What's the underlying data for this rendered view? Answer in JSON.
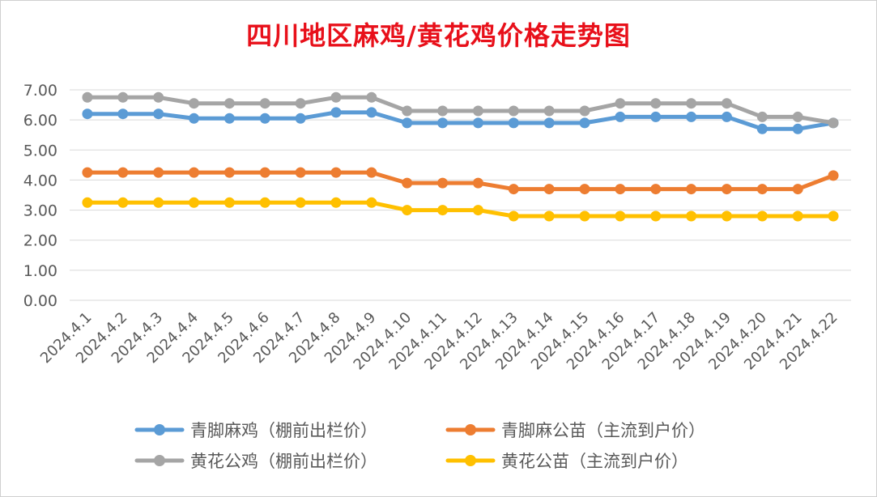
{
  "chart_data": {
    "type": "line",
    "title": "四川地区麻鸡/黄花鸡价格走势图",
    "xlabel": "",
    "ylabel": "",
    "ylim": [
      0,
      7
    ],
    "y_ticks": [
      "0.00",
      "1.00",
      "2.00",
      "3.00",
      "4.00",
      "5.00",
      "6.00",
      "7.00"
    ],
    "grid": true,
    "legend_position": "bottom",
    "categories": [
      "2024.4.1",
      "2024.4.2",
      "2024.4.3",
      "2024.4.4",
      "2024.4.5",
      "2024.4.6",
      "2024.4.7",
      "2024.4.8",
      "2024.4.9",
      "2024.4.10",
      "2024.4.11",
      "2024.4.12",
      "2024.4.13",
      "2024.4.14",
      "2024.4.15",
      "2024.4.16",
      "2024.4.17",
      "2024.4.18",
      "2024.4.19",
      "2024.4.20",
      "2024.4.21",
      "2024.4.22"
    ],
    "series": [
      {
        "name": "青脚麻鸡（棚前出栏价）",
        "color": "#5b9bd5",
        "values": [
          6.2,
          6.2,
          6.2,
          6.05,
          6.05,
          6.05,
          6.05,
          6.25,
          6.25,
          5.9,
          5.9,
          5.9,
          5.9,
          5.9,
          5.9,
          6.1,
          6.1,
          6.1,
          6.1,
          5.7,
          5.7,
          5.9
        ]
      },
      {
        "name": "青脚麻公苗（主流到户价）",
        "color": "#ed7d31",
        "values": [
          4.25,
          4.25,
          4.25,
          4.25,
          4.25,
          4.25,
          4.25,
          4.25,
          4.25,
          3.9,
          3.9,
          3.9,
          3.7,
          3.7,
          3.7,
          3.7,
          3.7,
          3.7,
          3.7,
          3.7,
          3.7,
          4.15
        ]
      },
      {
        "name": "黄花公鸡（棚前出栏价）",
        "color": "#a5a5a5",
        "values": [
          6.75,
          6.75,
          6.75,
          6.55,
          6.55,
          6.55,
          6.55,
          6.75,
          6.75,
          6.3,
          6.3,
          6.3,
          6.3,
          6.3,
          6.3,
          6.55,
          6.55,
          6.55,
          6.55,
          6.1,
          6.1,
          5.9
        ]
      },
      {
        "name": "黄花公苗（主流到户价）",
        "color": "#ffc000",
        "values": [
          3.25,
          3.25,
          3.25,
          3.25,
          3.25,
          3.25,
          3.25,
          3.25,
          3.25,
          3.0,
          3.0,
          3.0,
          2.8,
          2.8,
          2.8,
          2.8,
          2.8,
          2.8,
          2.8,
          2.8,
          2.8,
          2.8
        ]
      }
    ]
  }
}
